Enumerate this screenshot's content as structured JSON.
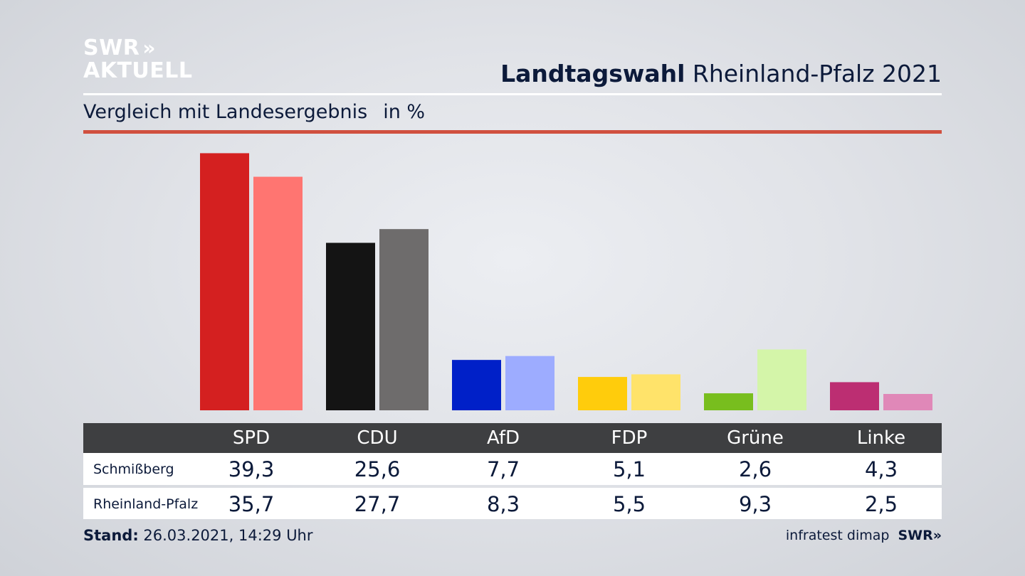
{
  "header": {
    "logo_line1": "SWR",
    "logo_chevrons": "»",
    "logo_line2": "AKTUELL",
    "title_bold": "Landtagswahl",
    "title_rest": "Rheinland-Pfalz 2021",
    "subtitle": "Vergleich mit Landesergebnis",
    "unit": "in %"
  },
  "chart_data": {
    "type": "bar",
    "categories": [
      "SPD",
      "CDU",
      "AfD",
      "FDP",
      "Grüne",
      "Linke"
    ],
    "series": [
      {
        "name": "Schmißberg",
        "values": [
          39.3,
          25.6,
          7.7,
          5.1,
          2.6,
          4.3
        ],
        "colors": [
          "#d42020",
          "#141414",
          "#0020c8",
          "#ffcc0c",
          "#78be1e",
          "#bc2e72"
        ]
      },
      {
        "name": "Rheinland-Pfalz",
        "values": [
          35.7,
          27.7,
          8.3,
          5.5,
          9.3,
          2.5
        ],
        "colors": [
          "#ff7571",
          "#6e6c6c",
          "#9dacff",
          "#ffe36a",
          "#d4f5a9",
          "#e088b8"
        ]
      }
    ],
    "display_values": {
      "Schmißberg": [
        "39,3",
        "25,6",
        "7,7",
        "5,1",
        "2,6",
        "4,3"
      ],
      "Rheinland-Pfalz": [
        "35,7",
        "27,7",
        "8,3",
        "5,5",
        "9,3",
        "2,5"
      ]
    }
  },
  "footer": {
    "stand_label": "Stand:",
    "stand_value": "26.03.2021, 14:29 Uhr",
    "source": "infratest dimap",
    "brand": "SWR",
    "brand_chevrons": "»"
  }
}
